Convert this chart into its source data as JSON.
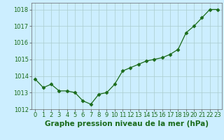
{
  "x": [
    0,
    1,
    2,
    3,
    4,
    5,
    6,
    7,
    8,
    9,
    10,
    11,
    12,
    13,
    14,
    15,
    16,
    17,
    18,
    19,
    20,
    21,
    22,
    23
  ],
  "y": [
    1013.8,
    1013.3,
    1013.5,
    1013.1,
    1013.1,
    1013.0,
    1012.5,
    1012.3,
    1012.9,
    1013.0,
    1013.5,
    1014.3,
    1014.5,
    1014.7,
    1014.9,
    1015.0,
    1015.1,
    1015.3,
    1015.6,
    1016.6,
    1017.0,
    1017.5,
    1018.0,
    1018.0
  ],
  "ylim_min": 1012,
  "ylim_max": 1018.4,
  "yticks": [
    1012,
    1013,
    1014,
    1015,
    1016,
    1017,
    1018
  ],
  "xticks": [
    0,
    1,
    2,
    3,
    4,
    5,
    6,
    7,
    8,
    9,
    10,
    11,
    12,
    13,
    14,
    15,
    16,
    17,
    18,
    19,
    20,
    21,
    22,
    23
  ],
  "xlabel": "Graphe pression niveau de la mer (hPa)",
  "line_color": "#1a6b1a",
  "marker": "D",
  "marker_size": 2.5,
  "bg_color": "#cceeff",
  "grid_color": "#aacccc",
  "tick_label_fontsize": 6.0,
  "xlabel_fontsize": 7.5,
  "xlabel_fontweight": "bold",
  "xlim_min": -0.5,
  "xlim_max": 23.5
}
